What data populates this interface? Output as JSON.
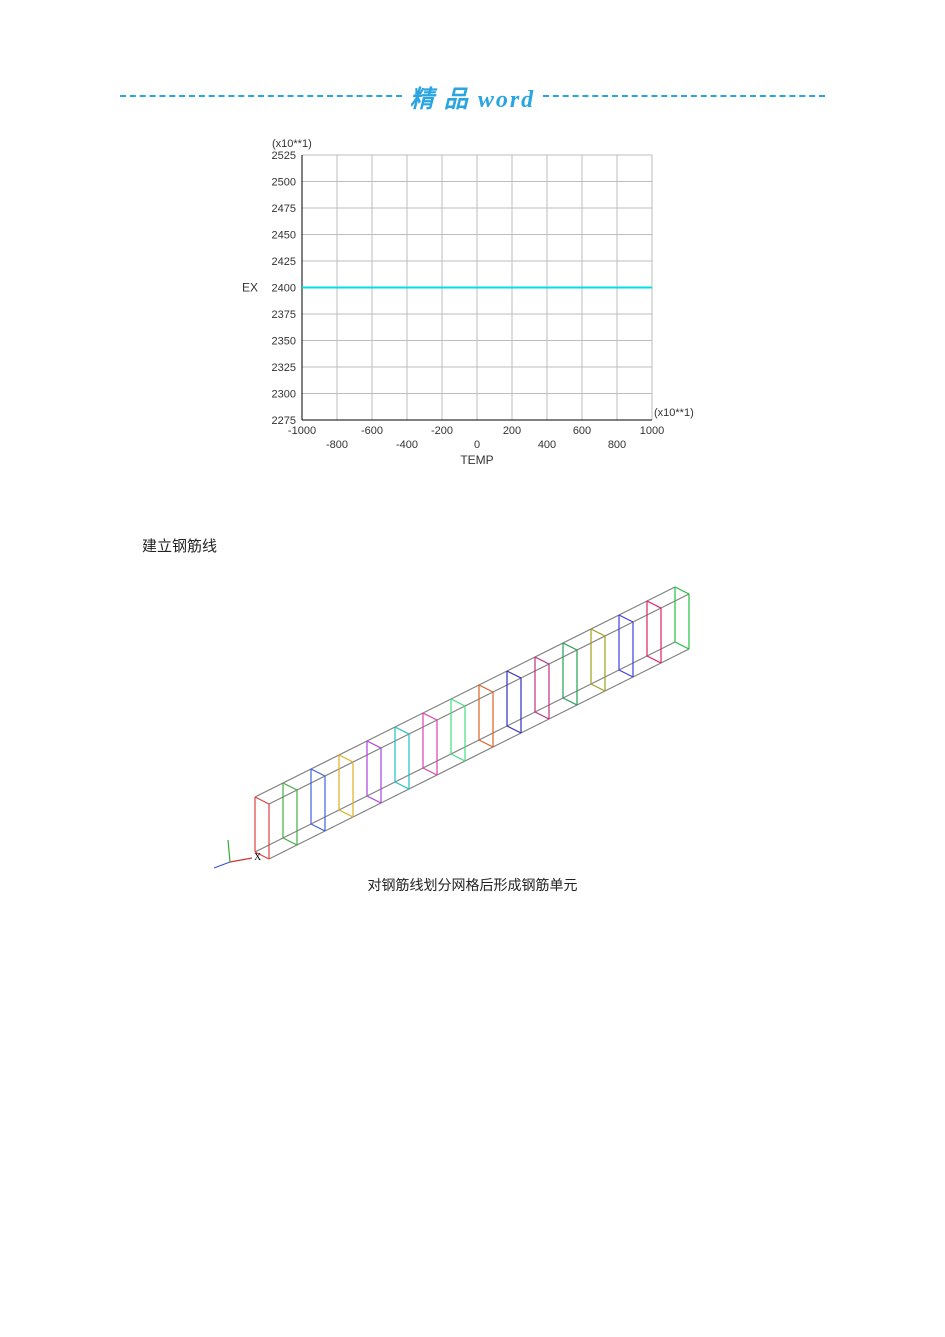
{
  "header": {
    "title_prefix": "精 品 ",
    "title_suffix": "word",
    "dash_color": "#2aa5e0"
  },
  "chart": {
    "type": "line",
    "y_multiplier_label": "(x10**1)",
    "x_multiplier_label": "(x10**1)",
    "ylabel": "EX",
    "xlabel": "TEMP",
    "x_ticks_top": [
      -1000,
      -600,
      -200,
      200,
      600,
      1000
    ],
    "x_ticks_bottom": [
      -800,
      -400,
      0,
      400,
      800
    ],
    "y_ticks": [
      2275,
      2300,
      2325,
      2350,
      2375,
      2400,
      2425,
      2450,
      2475,
      2500,
      2525
    ],
    "xlim": [
      -1000,
      1000
    ],
    "ylim": [
      2275,
      2525
    ],
    "series": {
      "name": "EX",
      "y_value": 2400,
      "color": "#00e0e0"
    },
    "grid_color": "#bdbdbd",
    "axis_color": "#000000",
    "background_color": "#ffffff",
    "label_fontsize": 11,
    "title_fontsize": 12
  },
  "section_heading": "建立钢筋线",
  "rebar_diagram": {
    "type": "isometric-wireframe",
    "stirrup_count": 16,
    "stirrup_colors": [
      "#e04040",
      "#40b040",
      "#4060e0",
      "#e0b020",
      "#b040e0",
      "#20c0c0",
      "#e040b0",
      "#40e080",
      "#e06020",
      "#3030c0",
      "#c03080",
      "#20a050",
      "#a0a020",
      "#4040e0",
      "#e02060",
      "#20c040"
    ],
    "longitudinal_color": "#808080",
    "triad": {
      "x_label": "X",
      "y_label": "",
      "z_label": ""
    }
  },
  "caption": "对钢筋线划分网格后形成钢筋单元"
}
